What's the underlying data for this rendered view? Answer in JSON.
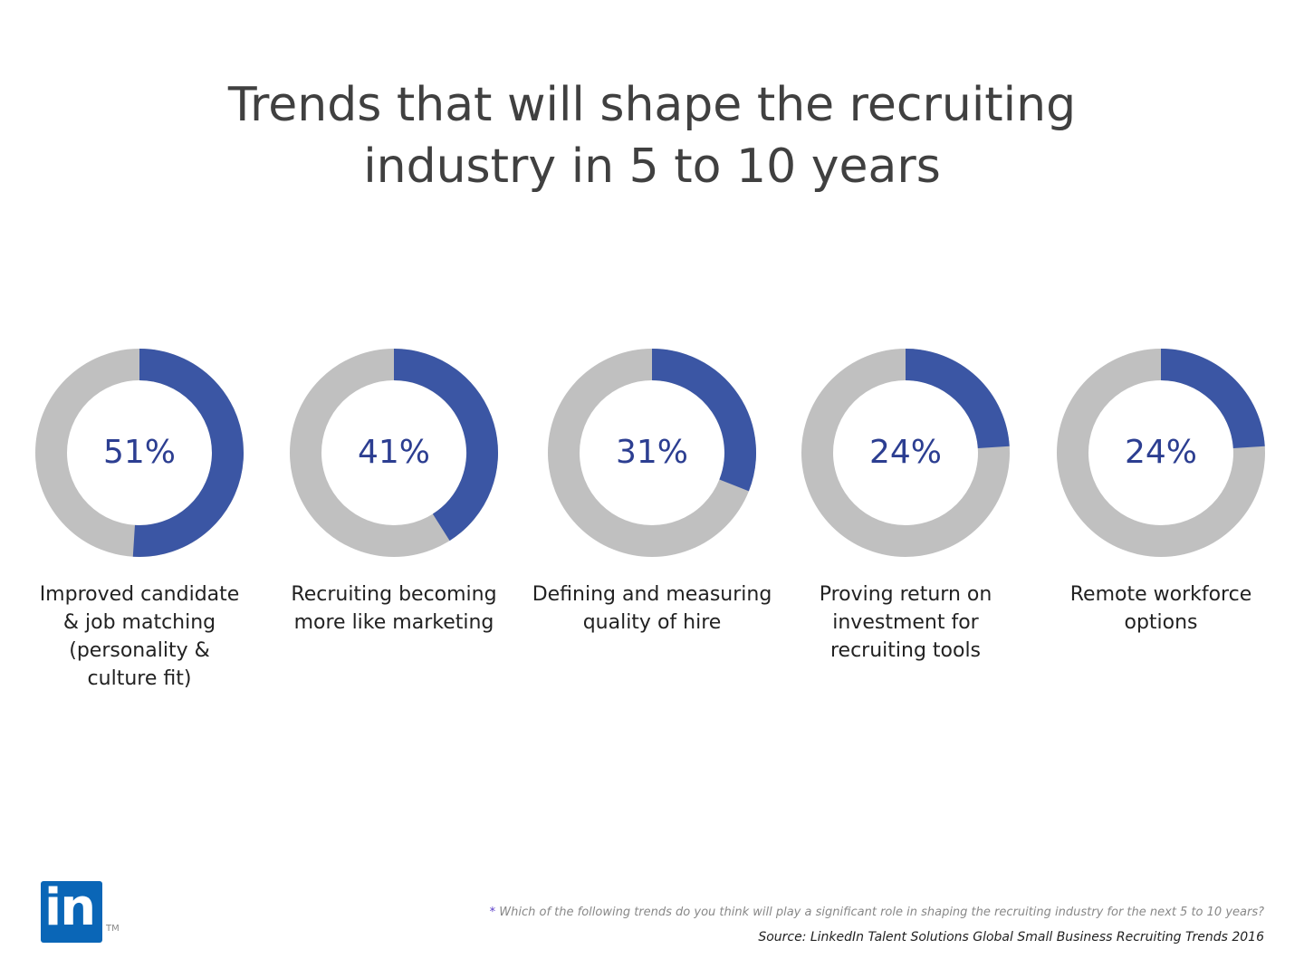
{
  "title_line1": "Trends that will shape the recruiting",
  "title_line2": "industry in 5 to 10 years",
  "colors": {
    "filled": "#3b56a4",
    "remaining": "#c0c0c0",
    "value_text": "#2c3e91"
  },
  "chart_data": {
    "type": "pie",
    "subtype": "donut",
    "title": "Trends that will shape the recruiting industry in 5 to 10 years",
    "items": [
      {
        "label": "Improved candidate\n& job matching\n(personality &\nculture fit)",
        "value": 51,
        "display": "51%"
      },
      {
        "label": "Recruiting becoming\nmore like marketing",
        "value": 41,
        "display": "41%"
      },
      {
        "label": "Defining and measuring\nquality of hire",
        "value": 31,
        "display": "31%"
      },
      {
        "label": "Proving return on\ninvestment for\nrecruiting tools",
        "value": 24,
        "display": "24%"
      },
      {
        "label": "Remote workforce\noptions",
        "value": 24,
        "display": "24%"
      }
    ]
  },
  "logo": {
    "text": "in",
    "tm": "TM"
  },
  "footnote": {
    "star": "*",
    "text": " Which of the following trends do you think will play a significant role in shaping the recruiting industry for the next 5 to 10 years?"
  },
  "source": "Source: LinkedIn Talent Solutions Global Small Business Recruiting Trends 2016"
}
